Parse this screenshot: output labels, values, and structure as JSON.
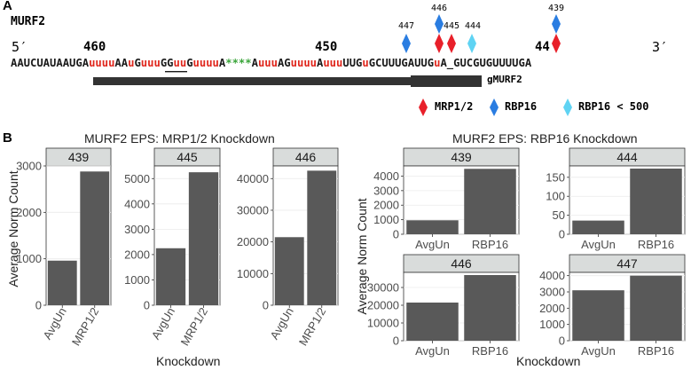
{
  "panel_a": {
    "label": "A",
    "gene": "MURF2",
    "five_prime": "5′",
    "three_prime": "3′",
    "positions": [
      "460",
      "450",
      "44"
    ],
    "sites": [
      "447",
      "446",
      "445",
      "444",
      "439"
    ],
    "sequence_segments": [
      {
        "text": "AAUCUAUAAUGA",
        "color": "#1a1a1a"
      },
      {
        "text": "uuuu",
        "color": "#e0281e"
      },
      {
        "text": "AA",
        "color": "#1a1a1a"
      },
      {
        "text": "u",
        "color": "#e0281e"
      },
      {
        "text": "G",
        "color": "#1a1a1a"
      },
      {
        "text": "uuu",
        "color": "#e0281e"
      },
      {
        "text": "GG",
        "color": "#1a1a1a"
      },
      {
        "text": "uu",
        "color": "#e0281e"
      },
      {
        "text": "G",
        "color": "#1a1a1a"
      },
      {
        "text": "uuuu",
        "color": "#e0281e"
      },
      {
        "text": "A",
        "color": "#1a1a1a"
      },
      {
        "text": "****",
        "color": "#3aa53a"
      },
      {
        "text": "A",
        "color": "#1a1a1a"
      },
      {
        "text": "uuu",
        "color": "#e0281e"
      },
      {
        "text": "AG",
        "color": "#1a1a1a"
      },
      {
        "text": "uuuu",
        "color": "#e0281e"
      },
      {
        "text": "A",
        "color": "#1a1a1a"
      },
      {
        "text": "uuu",
        "color": "#e0281e"
      },
      {
        "text": "UUG",
        "color": "#1a1a1a"
      },
      {
        "text": "u",
        "color": "#e0281e"
      },
      {
        "text": "GCUUUGAUUG",
        "color": "#1a1a1a"
      },
      {
        "text": "u",
        "color": "#e0281e"
      },
      {
        "text": "A_GUCGUGUUUUGA",
        "color": "#1a1a1a"
      }
    ],
    "guide_label": "gMURF2",
    "legend": [
      {
        "label": "MRP1/2",
        "color": "#e8202a"
      },
      {
        "label": "RBP16",
        "color": "#2a7de1"
      },
      {
        "label": "RBP16 < 500",
        "color": "#5fd3f3"
      }
    ]
  },
  "panel_b": {
    "label": "B",
    "left_title": "MURF2 EPS: MRP1/2 Knockdown",
    "right_title": "MURF2 EPS: RBP16 Knockdown",
    "left_ylabel": "Average Norm Count",
    "right_ylabel": "Average Norm Count",
    "left_xlabel": "Knockdown",
    "right_xlabel": "Knockdown"
  },
  "chart_data": [
    {
      "type": "bar",
      "title": "439",
      "categories": [
        "AvgUn",
        "MRP1/2"
      ],
      "values": [
        960,
        2880
      ],
      "ylim": [
        0,
        3000
      ],
      "yticks": [
        0,
        1000,
        2000,
        3000
      ]
    },
    {
      "type": "bar",
      "title": "445",
      "categories": [
        "AvgUn",
        "MRP1/2"
      ],
      "values": [
        2250,
        5250
      ],
      "ylim": [
        0,
        5500
      ],
      "yticks": [
        0,
        1000,
        2000,
        3000,
        4000,
        5000
      ]
    },
    {
      "type": "bar",
      "title": "446",
      "categories": [
        "AvgUn",
        "MRP1/2"
      ],
      "values": [
        21500,
        42500
      ],
      "ylim": [
        0,
        44000
      ],
      "yticks": [
        0,
        10000,
        20000,
        30000,
        40000
      ]
    },
    {
      "type": "bar",
      "title": "439",
      "categories": [
        "AvgUn",
        "RBP16"
      ],
      "values": [
        960,
        4500
      ],
      "ylim": [
        0,
        4700
      ],
      "yticks": [
        0,
        1000,
        2000,
        3000,
        4000
      ]
    },
    {
      "type": "bar",
      "title": "444",
      "categories": [
        "AvgUn",
        "RBP16"
      ],
      "values": [
        36,
        173
      ],
      "ylim": [
        0,
        180
      ],
      "yticks": [
        0,
        50,
        100,
        150
      ]
    },
    {
      "type": "bar",
      "title": "446",
      "categories": [
        "AvgUn",
        "RBP16"
      ],
      "values": [
        21500,
        37000
      ],
      "ylim": [
        0,
        38500
      ],
      "yticks": [
        0,
        10000,
        20000,
        30000
      ]
    },
    {
      "type": "bar",
      "title": "447",
      "categories": [
        "AvgUn",
        "RBP16"
      ],
      "values": [
        3100,
        4000
      ],
      "ylim": [
        0,
        4200
      ],
      "yticks": [
        0,
        1000,
        2000,
        3000,
        4000
      ]
    }
  ]
}
